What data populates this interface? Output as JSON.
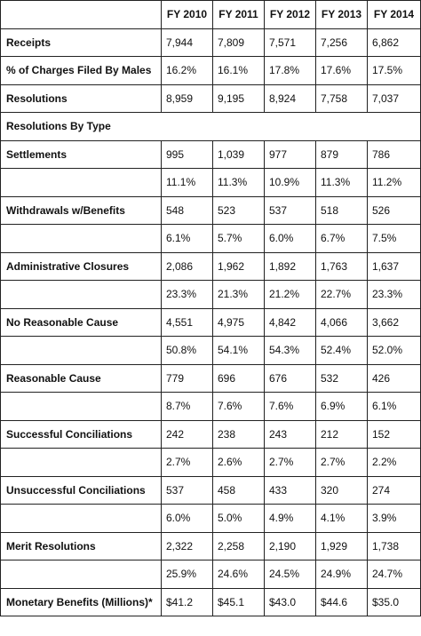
{
  "table": {
    "columns": [
      "FY 2010",
      "FY 2011",
      "FY 2012",
      "FY 2013",
      "FY 2014"
    ],
    "rows": [
      {
        "label": "Receipts",
        "cells": [
          "7,944",
          "7,809",
          "7,571",
          "7,256",
          "6,862"
        ]
      },
      {
        "label": "% of Charges Filed By Males",
        "cells": [
          "16.2%",
          "16.1%",
          "17.8%",
          "17.6%",
          "17.5%"
        ]
      },
      {
        "label": "Resolutions",
        "cells": [
          "8,959",
          "9,195",
          "8,924",
          "7,758",
          "7,037"
        ]
      },
      {
        "label": "Resolutions By Type"
      },
      {
        "label": "Settlements",
        "cells": [
          "995",
          "1,039",
          "977",
          "879",
          "786"
        ]
      },
      {
        "cells": [
          "11.1%",
          "11.3%",
          "10.9%",
          "11.3%",
          "11.2%"
        ]
      },
      {
        "label": "Withdrawals w/Benefits",
        "cells": [
          "548",
          "523",
          "537",
          "518",
          "526"
        ]
      },
      {
        "cells": [
          "6.1%",
          "5.7%",
          "6.0%",
          "6.7%",
          "7.5%"
        ]
      },
      {
        "label": "Administrative Closures",
        "cells": [
          "2,086",
          "1,962",
          "1,892",
          "1,763",
          "1,637"
        ]
      },
      {
        "cells": [
          "23.3%",
          "21.3%",
          "21.2%",
          "22.7%",
          "23.3%"
        ]
      },
      {
        "label": "No Reasonable Cause",
        "cells": [
          "4,551",
          "4,975",
          "4,842",
          "4,066",
          "3,662"
        ]
      },
      {
        "cells": [
          "50.8%",
          "54.1%",
          "54.3%",
          "52.4%",
          "52.0%"
        ]
      },
      {
        "label": "Reasonable Cause",
        "cells": [
          "779",
          "696",
          "676",
          "532",
          "426"
        ]
      },
      {
        "cells": [
          "8.7%",
          "7.6%",
          "7.6%",
          "6.9%",
          "6.1%"
        ]
      },
      {
        "label": "Successful Conciliations",
        "cells": [
          "242",
          "238",
          "243",
          "212",
          "152"
        ]
      },
      {
        "cells": [
          "2.7%",
          "2.6%",
          "2.7%",
          "2.7%",
          "2.2%"
        ]
      },
      {
        "label": "Unsuccessful Conciliations",
        "cells": [
          "537",
          "458",
          "433",
          "320",
          "274"
        ]
      },
      {
        "cells": [
          "6.0%",
          "5.0%",
          "4.9%",
          "4.1%",
          "3.9%"
        ]
      },
      {
        "label": "Merit Resolutions",
        "cells": [
          "2,322",
          "2,258",
          "2,190",
          "1,929",
          "1,738"
        ]
      },
      {
        "cells": [
          "25.9%",
          "24.6%",
          "24.5%",
          "24.9%",
          "24.7%"
        ]
      },
      {
        "label": "Monetary Benefits (Millions)*",
        "cells": [
          "$41.2",
          "$45.1",
          "$43.0",
          "$44.6",
          "$35.0"
        ]
      }
    ]
  }
}
